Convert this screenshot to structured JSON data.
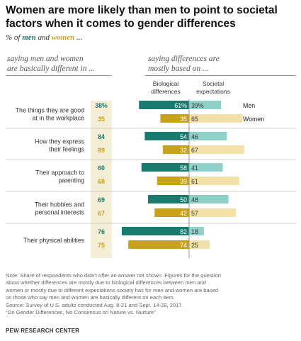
{
  "title": "Women are more likely than men to point to societal factors when it comes to gender differences",
  "subtitle": {
    "prefix": "% of ",
    "men": "men",
    "and": " and ",
    "women": "women",
    "suffix": " ..."
  },
  "left_header": {
    "line1": "saying men and women",
    "line2": "are basically different in ..."
  },
  "right_header": {
    "line1": "saying differences are",
    "line2": "mostly based on ..."
  },
  "col_bio": {
    "line1": "Biological",
    "line2": "differences"
  },
  "col_soc": {
    "line1": "Societal",
    "line2": "expectations"
  },
  "colors": {
    "men": "#1b7a6e",
    "women": "#c9a21b",
    "men_light": "#8fd1c8",
    "women_light": "#f2e2a9",
    "band": "#f3eed5"
  },
  "chart_data": {
    "type": "bar",
    "categories": [
      "The things they are good at in the workplace",
      "How they express their feelings",
      "Their approach to parenting",
      "Their hobbies and personal interests",
      "Their physical abilities"
    ],
    "category_lines": [
      [
        "The things they are good",
        "at in the workplace"
      ],
      [
        "How they express",
        "their feelings"
      ],
      [
        "Their approach to",
        "parenting"
      ],
      [
        "Their hobbies and",
        "personal interests"
      ],
      [
        "Their physical abilities"
      ]
    ],
    "series_labels": [
      "Men",
      "Women"
    ],
    "percent_different": {
      "men": [
        38,
        84,
        60,
        69,
        76
      ],
      "women": [
        35,
        89,
        68,
        67,
        75
      ]
    },
    "percent_different_labels": {
      "men": [
        "38%",
        "84",
        "60",
        "69",
        "76"
      ],
      "women": [
        "35",
        "89",
        "68",
        "67",
        "75"
      ]
    },
    "biological": {
      "men": [
        61,
        54,
        58,
        50,
        82
      ],
      "women": [
        35,
        32,
        39,
        42,
        74
      ]
    },
    "biological_labels": {
      "men": [
        "61%",
        "54",
        "58",
        "50",
        "82"
      ],
      "women": [
        "35",
        "32",
        "39",
        "42",
        "74"
      ]
    },
    "societal": {
      "men": [
        39,
        46,
        41,
        48,
        18
      ],
      "women": [
        65,
        67,
        61,
        57,
        25
      ]
    },
    "societal_labels": {
      "men": [
        "39%",
        "46",
        "41",
        "48",
        "18"
      ],
      "women": [
        "65",
        "67",
        "61",
        "57",
        "25"
      ]
    }
  },
  "note": [
    "Note: Share of respondents who didn't offer an answer not shown. Figures for the question",
    "about whether differences are mostly due to biological differences between men and",
    "women or mostly due to different expectations society has for men and women are based",
    "on those who say men and women are basically different on each item.",
    "Source: Survey of U.S. adults conducted Aug. 8-21 and Sept. 14-28, 2017.",
    "“On Gender Differences, No Consensus on Nature vs. Nurture”"
  ],
  "brand": "PEW RESEARCH CENTER"
}
